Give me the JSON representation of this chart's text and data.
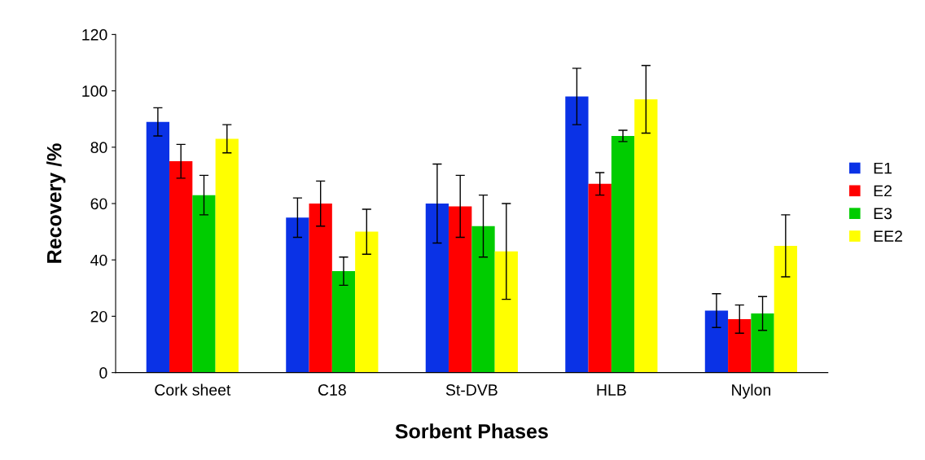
{
  "chart_data": {
    "type": "bar",
    "xlabel": "Sorbent Phases",
    "ylabel": "Recovery /%",
    "categories": [
      "Cork sheet",
      "C18",
      "St-DVB",
      "HLB",
      "Nylon"
    ],
    "series": [
      {
        "name": "E1",
        "color": "#0a32e6",
        "values": [
          89,
          55,
          60,
          98,
          22
        ],
        "errors": [
          5,
          7,
          14,
          10,
          6
        ]
      },
      {
        "name": "E2",
        "color": "#ff0000",
        "values": [
          75,
          60,
          59,
          67,
          19
        ],
        "errors": [
          6,
          8,
          11,
          4,
          5
        ]
      },
      {
        "name": "E3",
        "color": "#00cc00",
        "values": [
          63,
          36,
          52,
          84,
          21
        ],
        "errors": [
          7,
          5,
          11,
          2,
          6
        ]
      },
      {
        "name": "EE2",
        "color": "#ffff00",
        "values": [
          83,
          50,
          43,
          97,
          45
        ],
        "errors": [
          5,
          8,
          17,
          12,
          11
        ]
      }
    ],
    "ylim": [
      0,
      120
    ],
    "yticks": [
      0,
      20,
      40,
      60,
      80,
      100,
      120
    ],
    "grid": false,
    "legend": "right"
  }
}
